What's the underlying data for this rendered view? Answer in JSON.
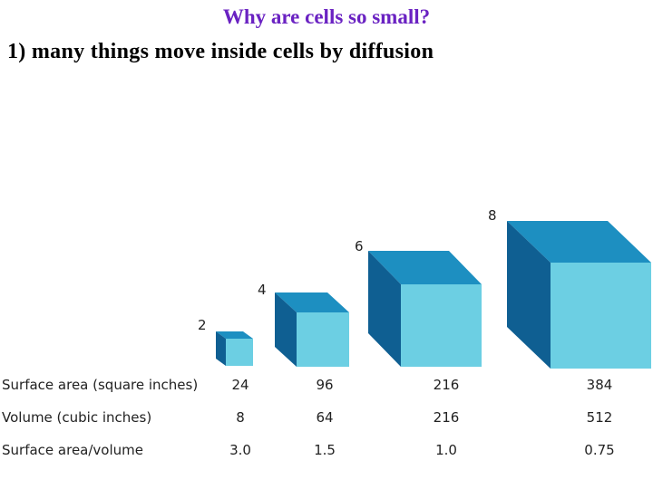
{
  "title": "Why are cells so small?",
  "subtitle": "1) many things move inside cells by diffusion",
  "colors": {
    "title": "#6a22c2",
    "cube_front": "#6ccfe3",
    "cube_top": "#1d8fc1",
    "cube_side": "#0f5f92"
  },
  "cubes": [
    {
      "edge": "2"
    },
    {
      "edge": "4"
    },
    {
      "edge": "6"
    },
    {
      "edge": "8"
    }
  ],
  "table": {
    "rows": [
      {
        "label": "Surface area (square inches)",
        "values": [
          "24",
          "96",
          "216",
          "384"
        ]
      },
      {
        "label": "Volume (cubic inches)",
        "values": [
          "8",
          "64",
          "216",
          "512"
        ]
      },
      {
        "label": "Surface area/volume",
        "values": [
          "3.0",
          "1.5",
          "1.0",
          "0.75"
        ]
      }
    ]
  }
}
